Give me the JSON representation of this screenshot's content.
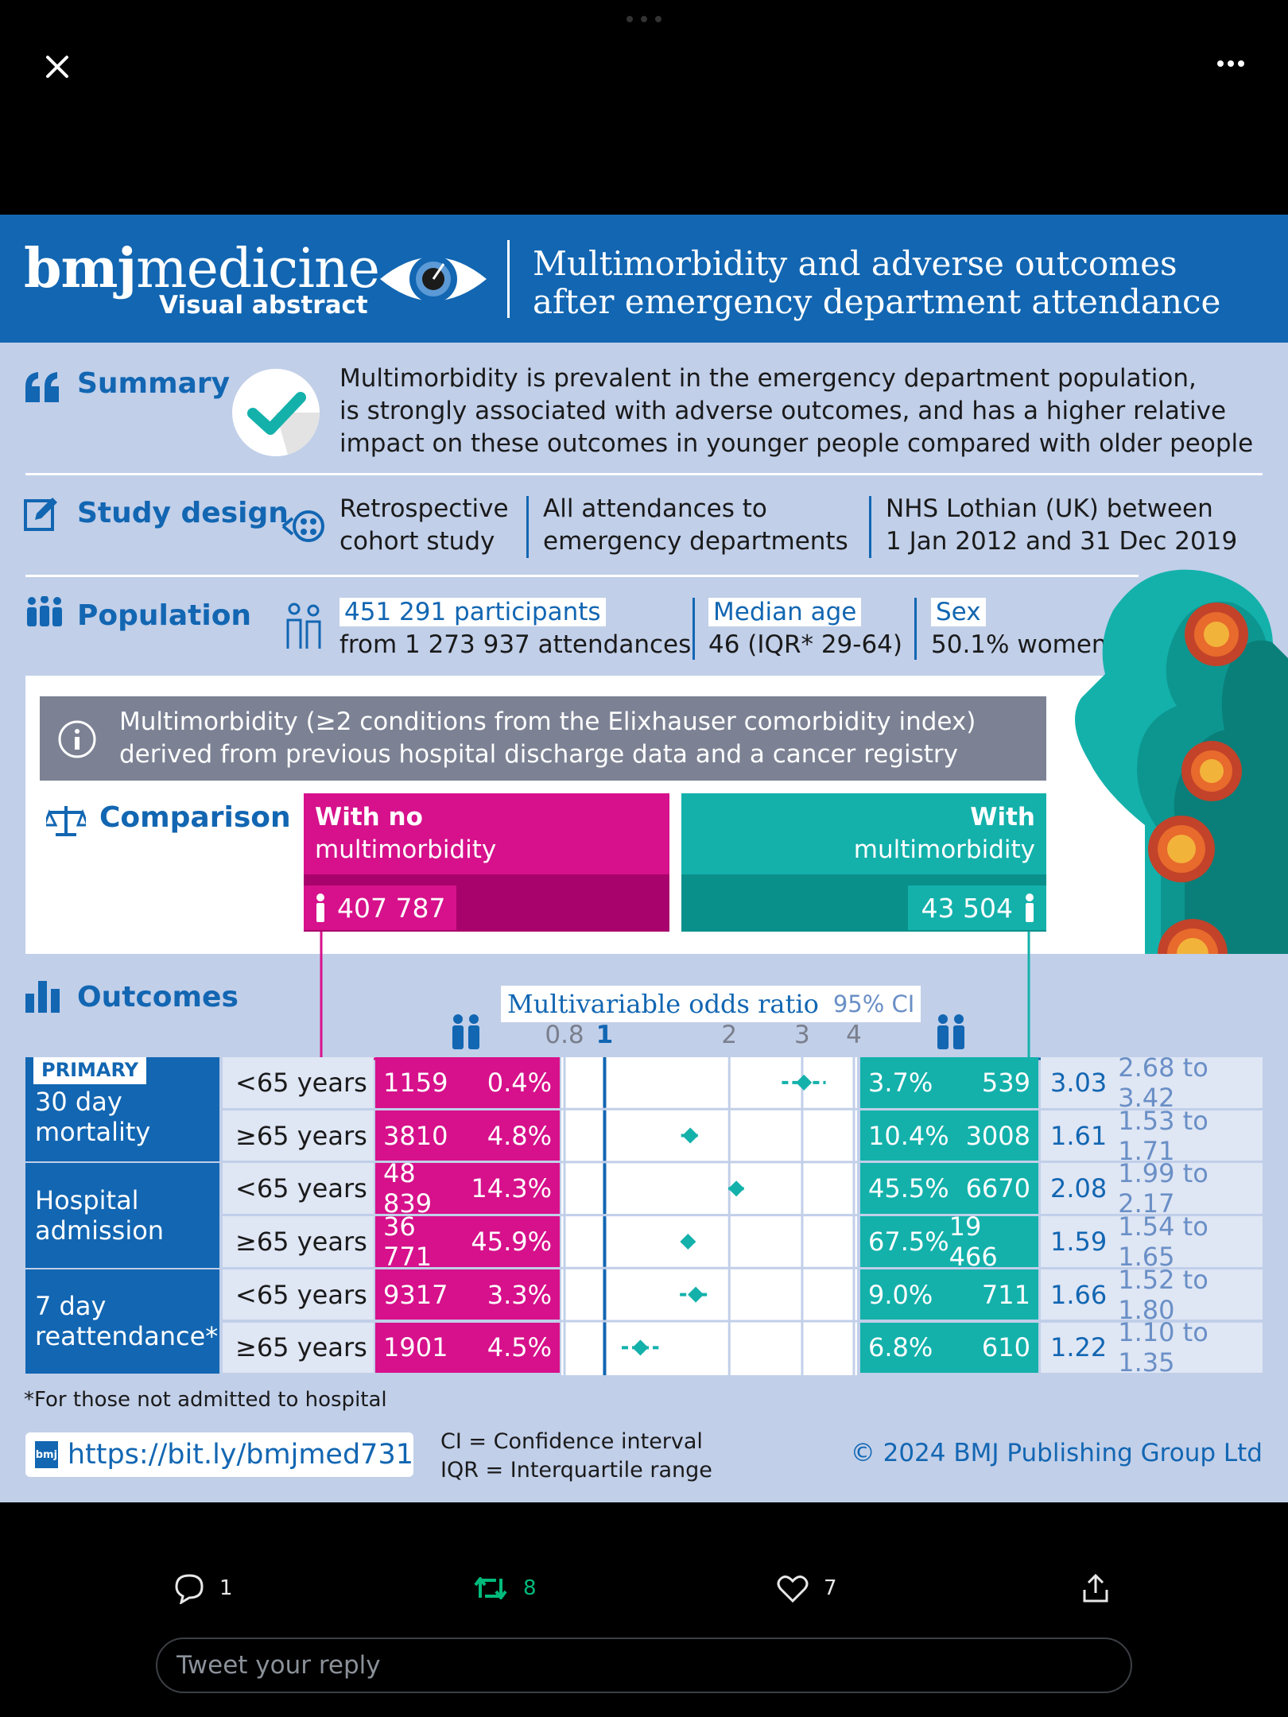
{
  "header": {
    "brand_bold": "bmj",
    "brand_rest": "medicine",
    "brand_sub": "Visual abstract",
    "title_line1": "Multimorbidity and adverse outcomes",
    "title_line2": "after emergency department attendance"
  },
  "summary": {
    "label": "Summary",
    "line1": "Multimorbidity is prevalent in the emergency department population,",
    "line2": "is strongly associated with adverse outcomes, and has a higher relative",
    "line3": "impact on these outcomes in younger people compared with older people"
  },
  "study_design": {
    "label": "Study design",
    "col1_line1": "Retrospective",
    "col1_line2": "cohort study",
    "col2_line1": "All attendances to",
    "col2_line2": "emergency departments",
    "col3_line1": "NHS Lothian (UK) between",
    "col3_line2": "1 Jan 2012 and 31 Dec 2019"
  },
  "population": {
    "label": "Population",
    "participants": "451 291 participants",
    "attendances": "from 1 273 937 attendances",
    "median_label": "Median age",
    "median_value": "46 (IQR* 29-64)",
    "sex_label": "Sex",
    "sex_value": "50.1% women"
  },
  "info": {
    "line1": "Multimorbidity (≥2 conditions from the Elixhauser comorbidity index)",
    "line2": "derived from previous hospital discharge data and a cancer registry"
  },
  "comparison": {
    "label": "Comparison",
    "no_mm_line1": "With no",
    "no_mm_line2": "multimorbidity",
    "no_mm_count": "407 787",
    "mm_line1": "With",
    "mm_line2": "multimorbidity",
    "mm_count": "43 504"
  },
  "outcomes": {
    "label": "Outcomes",
    "or_title": "Multivariable odds ratio",
    "or_ci": "95% CI",
    "primary_tag": "PRIMARY",
    "groups": [
      {
        "label_line1": "30 day",
        "label_line2": "mortality"
      },
      {
        "label_line1": "Hospital",
        "label_line2": "admission"
      },
      {
        "label_line1": "7 day",
        "label_line2": "reattendance*"
      }
    ],
    "rows": [
      {
        "age": "<65 years",
        "n_no": "1159",
        "pct_no": "0.4%",
        "pct_mm": "3.7%",
        "n_mm": "539",
        "or": "3.03",
        "ci": "2.68 to 3.42"
      },
      {
        "age": "≥65 years",
        "n_no": "3810",
        "pct_no": "4.8%",
        "pct_mm": "10.4%",
        "n_mm": "3008",
        "or": "1.61",
        "ci": "1.53 to 1.71"
      },
      {
        "age": "<65 years",
        "n_no": "48 839",
        "pct_no": "14.3%",
        "pct_mm": "45.5%",
        "n_mm": "6670",
        "or": "2.08",
        "ci": "1.99 to 2.17"
      },
      {
        "age": "≥65 years",
        "n_no": "36 771",
        "pct_no": "45.9%",
        "pct_mm": "67.5%",
        "n_mm": "19 466",
        "or": "1.59",
        "ci": "1.54 to 1.65"
      },
      {
        "age": "<65 years",
        "n_no": "9317",
        "pct_no": "3.3%",
        "pct_mm": "9.0%",
        "n_mm": "711",
        "or": "1.66",
        "ci": "1.52 to 1.80"
      },
      {
        "age": "≥65 years",
        "n_no": "1901",
        "pct_no": "4.5%",
        "pct_mm": "6.8%",
        "n_mm": "610",
        "or": "1.22",
        "ci": "1.10 to 1.35"
      }
    ]
  },
  "chart_data": {
    "type": "scatter",
    "xscale": "log",
    "xlim": [
      0.8,
      4
    ],
    "x_ticks": [
      "0.8",
      "1",
      "2",
      "3",
      "4"
    ],
    "points": [
      {
        "or": 3.03,
        "lo": 2.68,
        "hi": 3.42
      },
      {
        "or": 1.61,
        "lo": 1.53,
        "hi": 1.71
      },
      {
        "or": 2.08,
        "lo": 1.99,
        "hi": 2.17
      },
      {
        "or": 1.59,
        "lo": 1.54,
        "hi": 1.65
      },
      {
        "or": 1.66,
        "lo": 1.52,
        "hi": 1.8
      },
      {
        "or": 1.22,
        "lo": 1.1,
        "hi": 1.35
      }
    ]
  },
  "footer": {
    "footnote": "*For those not admitted to hospital",
    "link": "https://bit.ly/bmjmed731",
    "link_logo": "bmj",
    "ci_def": "CI = Confidence interval",
    "iqr_def": "IQR = Interquartile range",
    "copyright": "© 2024 BMJ Publishing Group Ltd"
  },
  "actions": {
    "reply_count": "1",
    "retweet_count": "8",
    "like_count": "7"
  },
  "reply": {
    "placeholder": "Tweet your reply"
  },
  "colors": {
    "blue": "#1266b2",
    "pink": "#d6118b",
    "teal": "#14b1ab",
    "retweet_green": "#00ba7c"
  }
}
